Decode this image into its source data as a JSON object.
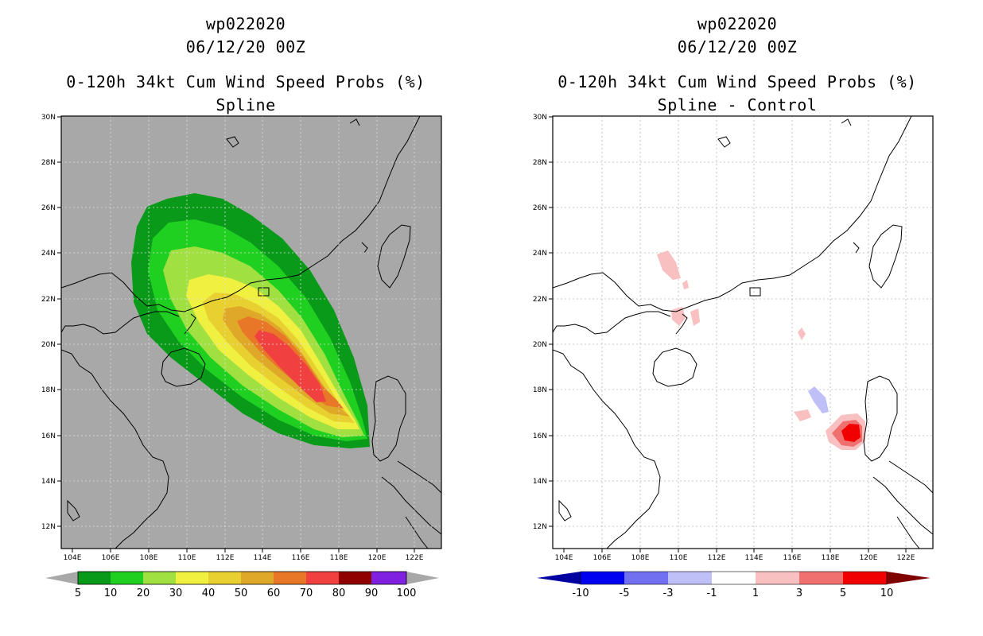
{
  "left_panel": {
    "storm_id": "wp022020",
    "datetime": "06/12/20 00Z",
    "product": "0-120h 34kt Cum Wind Speed Probs (%)",
    "subtitle": "Spline",
    "background_color": "#a8a8a8",
    "lat_labels": [
      "30N",
      "28N",
      "26N",
      "24N",
      "22N",
      "20N",
      "18N",
      "16N",
      "14N",
      "12N"
    ],
    "lon_labels": [
      "104E",
      "106E",
      "108E",
      "110E",
      "112E",
      "114E",
      "116E",
      "118E",
      "120E",
      "122E"
    ],
    "colorbar": {
      "labels": [
        "5",
        "10",
        "20",
        "30",
        "40",
        "50",
        "60",
        "70",
        "80",
        "90",
        "100"
      ],
      "colors": [
        "#0a9a1a",
        "#20d020",
        "#a0e040",
        "#f0f040",
        "#e8d030",
        "#e0a828",
        "#e87828",
        "#f04040",
        "#900000",
        "#8020e0"
      ]
    }
  },
  "right_panel": {
    "storm_id": "wp022020",
    "datetime": "06/12/20 00Z",
    "product": "0-120h 34kt Cum Wind Speed Probs (%)",
    "subtitle": "Spline - Control",
    "background_color": "#ffffff",
    "lat_labels": [
      "30N",
      "28N",
      "26N",
      "24N",
      "22N",
      "20N",
      "18N",
      "16N",
      "14N",
      "12N"
    ],
    "lon_labels": [
      "104E",
      "106E",
      "108E",
      "110E",
      "112E",
      "114E",
      "116E",
      "118E",
      "120E",
      "122E"
    ],
    "colorbar": {
      "labels": [
        "-10",
        "-5",
        "-3",
        "-1",
        "1",
        "3",
        "5",
        "10"
      ],
      "colors": [
        "#0000a0",
        "#0000f0",
        "#7070f0",
        "#c0c0f8",
        "#ffffff",
        "#f8c0c0",
        "#f07070",
        "#f00000",
        "#800000"
      ]
    }
  }
}
